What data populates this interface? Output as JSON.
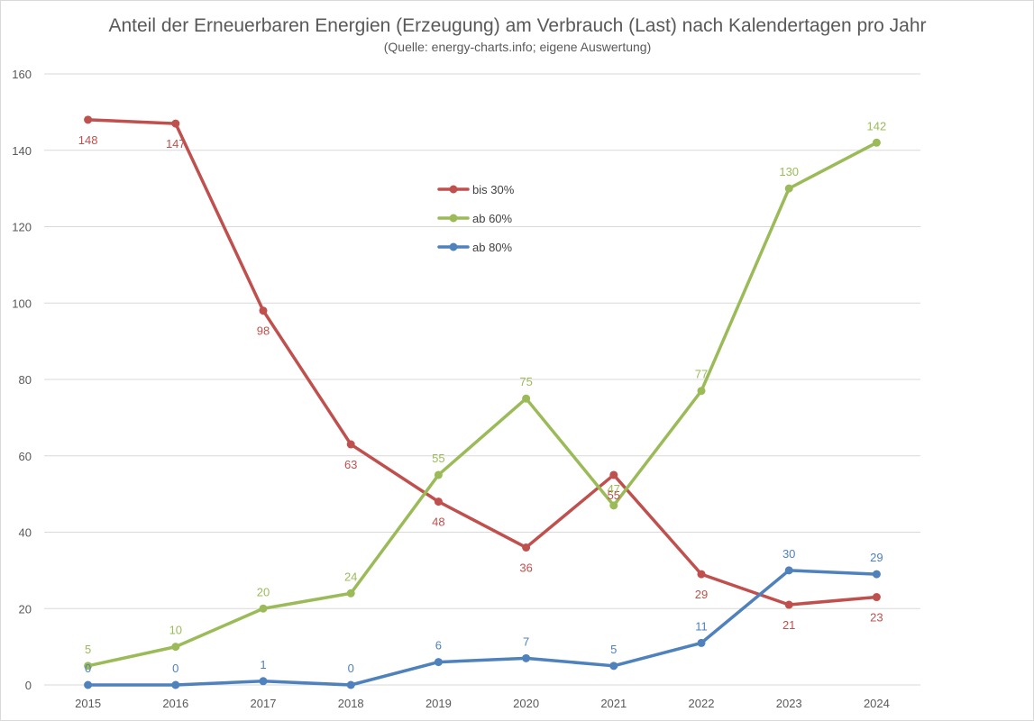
{
  "chart_data": {
    "type": "line",
    "title": "Anteil der Erneuerbaren Energien (Erzeugung) am Verbrauch (Last) nach Kalendertagen pro Jahr",
    "subtitle": "(Quelle: energy-charts.info; eigene Auswertung)",
    "xlabel": "",
    "ylabel": "",
    "categories": [
      "2015",
      "2016",
      "2017",
      "2018",
      "2019",
      "2020",
      "2021",
      "2022",
      "2023",
      "2024"
    ],
    "ylim": [
      0,
      160
    ],
    "yticks": [
      0,
      20,
      40,
      60,
      80,
      100,
      120,
      140,
      160
    ],
    "grid": true,
    "legend_position": "center-top",
    "series": [
      {
        "name": "bis 30%",
        "color": "#c0504d",
        "values": [
          148,
          147,
          98,
          63,
          48,
          36,
          55,
          29,
          21,
          23
        ],
        "label_position": [
          "below",
          "below",
          "below",
          "below",
          "below",
          "below",
          "below",
          "below",
          "below",
          "below"
        ]
      },
      {
        "name": "ab 60%",
        "color": "#9bbb59",
        "values": [
          5,
          10,
          20,
          24,
          55,
          75,
          47,
          77,
          130,
          142
        ],
        "label_position": [
          "above",
          "above",
          "above",
          "above",
          "above",
          "above",
          "above",
          "above",
          "above",
          "above"
        ]
      },
      {
        "name": "ab 80%",
        "color": "#4f81bd",
        "values": [
          0,
          0,
          1,
          0,
          6,
          7,
          5,
          11,
          30,
          29
        ],
        "label_position": [
          "above",
          "above",
          "above",
          "above",
          "above",
          "above",
          "above",
          "above",
          "above",
          "above"
        ]
      }
    ]
  }
}
